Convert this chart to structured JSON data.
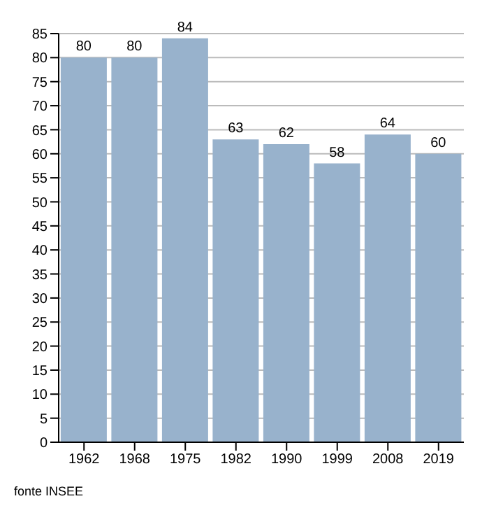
{
  "chart_data": {
    "type": "bar",
    "categories": [
      "1962",
      "1968",
      "1975",
      "1982",
      "1990",
      "1999",
      "2008",
      "2019"
    ],
    "values": [
      80,
      80,
      84,
      63,
      62,
      58,
      64,
      60
    ],
    "color": "#98b2cc",
    "data_labels": true,
    "ylim": [
      0,
      85
    ],
    "yticks": [
      0,
      5,
      10,
      15,
      20,
      25,
      30,
      35,
      40,
      45,
      50,
      55,
      60,
      65,
      70,
      75,
      80,
      85
    ],
    "grid": "y",
    "annotations": [
      "fonte INSEE"
    ]
  }
}
